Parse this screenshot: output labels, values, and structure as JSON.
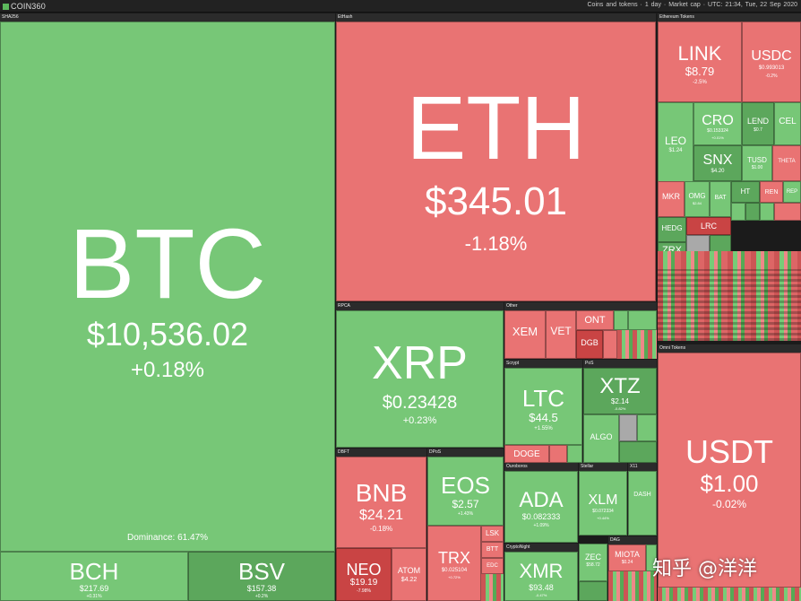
{
  "topbar": {
    "logo": "COIN360",
    "mode": "Coins and tokens",
    "period": "1 day",
    "metric": "Market cap",
    "time": "UTC: 21:34, Tue, 22 Sep 2020"
  },
  "sections": {
    "sha256": "SHA256",
    "ethash": "EtHash",
    "eth_tokens": "Ethereum Tokens",
    "rpca": "RPCA",
    "other": "Other",
    "scrypt": "Scrypt",
    "pos": "PoS",
    "dbft": "DBFT",
    "dpos": "DPoS",
    "ouroboros": "Ouroboros",
    "stellar": "Stellar",
    "x11": "X11",
    "cryptonight": "CryptoNight",
    "omni": "Omni Tokens",
    "dag": "DAG"
  },
  "tiles": {
    "btc": {
      "symbol": "BTC",
      "price": "$10,536.02",
      "change": "+0.18%",
      "dominance": "Dominance: 61.47%"
    },
    "bch": {
      "symbol": "BCH",
      "price": "$217.69",
      "change": "+0.31%"
    },
    "bsv": {
      "symbol": "BSV",
      "price": "$157.38",
      "change": "+0.2%"
    },
    "eth": {
      "symbol": "ETH",
      "price": "$345.01",
      "change": "-1.18%"
    },
    "link": {
      "symbol": "LINK",
      "price": "$8.79",
      "change": "-2.5%"
    },
    "usdc": {
      "symbol": "USDC",
      "price": "$0.993013",
      "change": "-0.2%"
    },
    "cro": {
      "symbol": "CRO",
      "price": "$0.153324",
      "change": "+0.01%"
    },
    "lend": {
      "symbol": "LEND",
      "price": "$0.7",
      "change": ""
    },
    "cel": {
      "symbol": "CEL",
      "price": "",
      "change": ""
    },
    "leo": {
      "symbol": "LEO",
      "price": "$1.24",
      "change": ""
    },
    "snx": {
      "symbol": "SNX",
      "price": "$4.20",
      "change": ""
    },
    "tusd": {
      "symbol": "TUSD",
      "price": "$1.00",
      "change": ""
    },
    "theta": {
      "symbol": "THETA",
      "price": "",
      "change": ""
    },
    "mkr": {
      "symbol": "MKR",
      "price": "",
      "change": ""
    },
    "omg": {
      "symbol": "OMG",
      "price": "$2.84",
      "change": ""
    },
    "bat": {
      "symbol": "BAT",
      "price": "",
      "change": ""
    },
    "ht": {
      "symbol": "HT",
      "price": "",
      "change": ""
    },
    "ren": {
      "symbol": "REN",
      "price": "",
      "change": ""
    },
    "rep": {
      "symbol": "REP",
      "price": "",
      "change": ""
    },
    "hedg": {
      "symbol": "HEDG",
      "price": "",
      "change": ""
    },
    "lrc": {
      "symbol": "LRC",
      "price": "",
      "change": ""
    },
    "zrx": {
      "symbol": "ZRX",
      "price": "",
      "change": ""
    },
    "xrp": {
      "symbol": "XRP",
      "price": "$0.23428",
      "change": "+0.23%"
    },
    "xem": {
      "symbol": "XEM",
      "price": "",
      "change": ""
    },
    "vet": {
      "symbol": "VET",
      "price": "",
      "change": ""
    },
    "ont": {
      "symbol": "ONT",
      "price": "",
      "change": ""
    },
    "dgb": {
      "symbol": "DGB",
      "price": "",
      "change": ""
    },
    "ltc": {
      "symbol": "LTC",
      "price": "$44.5",
      "change": "+1.55%"
    },
    "doge": {
      "symbol": "DOGE",
      "price": "",
      "change": ""
    },
    "xtz": {
      "symbol": "XTZ",
      "price": "$2.14",
      "change": "-0.82%"
    },
    "algo": {
      "symbol": "ALGO",
      "price": "",
      "change": ""
    },
    "bnb": {
      "symbol": "BNB",
      "price": "$24.21",
      "change": "-0.18%"
    },
    "neo": {
      "symbol": "NEO",
      "price": "$19.19",
      "change": "-7.98%"
    },
    "atom": {
      "symbol": "ATOM",
      "price": "$4.22",
      "change": ""
    },
    "eos": {
      "symbol": "EOS",
      "price": "$2.57",
      "change": "+1.43%"
    },
    "trx": {
      "symbol": "TRX",
      "price": "$0.025104",
      "change": "+0.72%"
    },
    "lsk": {
      "symbol": "LSK",
      "price": "",
      "change": ""
    },
    "btt": {
      "symbol": "BTT",
      "price": "",
      "change": ""
    },
    "edc": {
      "symbol": "EDC",
      "price": "",
      "change": ""
    },
    "ada": {
      "symbol": "ADA",
      "price": "$0.082333",
      "change": "+1.09%"
    },
    "xlm": {
      "symbol": "XLM",
      "price": "$0.072334",
      "change": "+0.44%"
    },
    "dash": {
      "symbol": "DASH",
      "price": "",
      "change": ""
    },
    "xmr": {
      "symbol": "XMR",
      "price": "$93.48",
      "change": "-0.47%"
    },
    "zec": {
      "symbol": "ZEC",
      "price": "$58.72",
      "change": ""
    },
    "miota": {
      "symbol": "MIOTA",
      "price": "$0.24",
      "change": ""
    },
    "usdt": {
      "symbol": "USDT",
      "price": "$1.00",
      "change": "-0.02%"
    }
  },
  "watermark": "知乎 @洋洋",
  "colors": {
    "up": "#77c777",
    "up_dark": "#5ca75c",
    "down": "#e97373",
    "down_dark": "#c94444",
    "neutral": "#a9a9a9"
  }
}
